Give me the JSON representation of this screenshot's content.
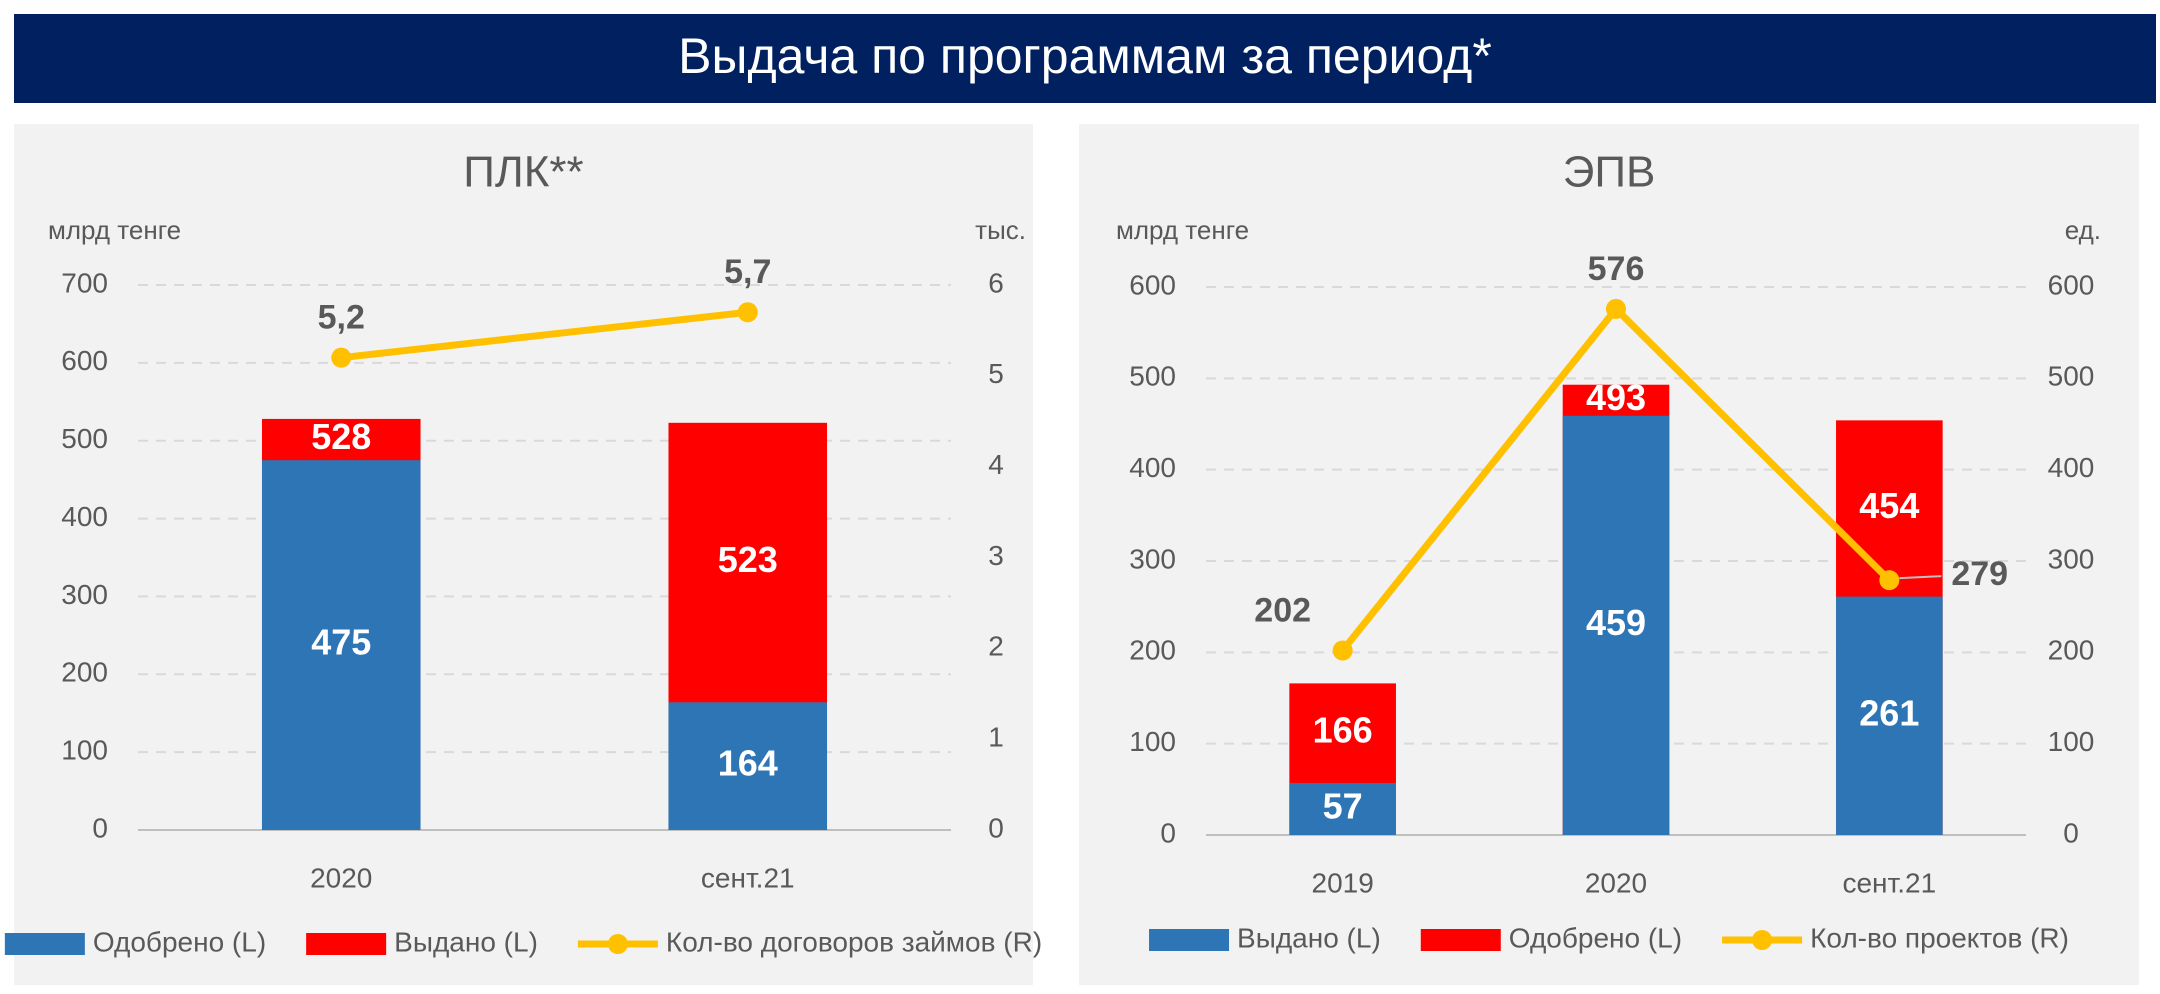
{
  "header": {
    "title": "Выдача по программам за период*"
  },
  "chart_data": [
    {
      "type": "bar",
      "title": "ПЛК**",
      "y_axis_label": "млрд тенге",
      "y2_axis_label": "тыс.",
      "categories": [
        "2020",
        "сент.21"
      ],
      "series": [
        {
          "name": "Одобрено (L)",
          "color": "#2e75b6",
          "values": [
            475,
            164
          ]
        },
        {
          "name": "Выдано (L)",
          "color": "#ff0000",
          "values": [
            528,
            523
          ]
        },
        {
          "name": "Кол-во договоров займов (R)",
          "type": "line",
          "axis": "y2",
          "color": "#ffc000",
          "values": [
            5.2,
            5.7
          ],
          "value_labels": [
            "5,2",
            "5,7"
          ]
        }
      ],
      "ylim": [
        0,
        700
      ],
      "yticks": [
        0,
        100,
        200,
        300,
        400,
        500,
        600,
        700
      ],
      "y2lim": [
        0,
        6
      ],
      "y2ticks": [
        0,
        1,
        2,
        3,
        4,
        5,
        6
      ],
      "grid": true
    },
    {
      "type": "bar",
      "title": "ЭПВ",
      "y_axis_label": "млрд тенге",
      "y2_axis_label": "ед.",
      "categories": [
        "2019",
        "2020",
        "сент.21"
      ],
      "series": [
        {
          "name": "Выдано (L)",
          "color": "#2e75b6",
          "values": [
            57,
            459,
            261
          ]
        },
        {
          "name": "Одобрено (L)",
          "color": "#ff0000",
          "values": [
            166,
            493,
            454
          ]
        },
        {
          "name": "Кол-во проектов (R)",
          "type": "line",
          "axis": "y2",
          "color": "#ffc000",
          "values": [
            202,
            576,
            279
          ]
        }
      ],
      "ylim": [
        0,
        600
      ],
      "yticks": [
        0,
        100,
        200,
        300,
        400,
        500,
        600
      ],
      "y2lim": [
        0,
        600
      ],
      "y2ticks": [
        0,
        100,
        200,
        300,
        400,
        500,
        600
      ],
      "grid": true
    }
  ]
}
